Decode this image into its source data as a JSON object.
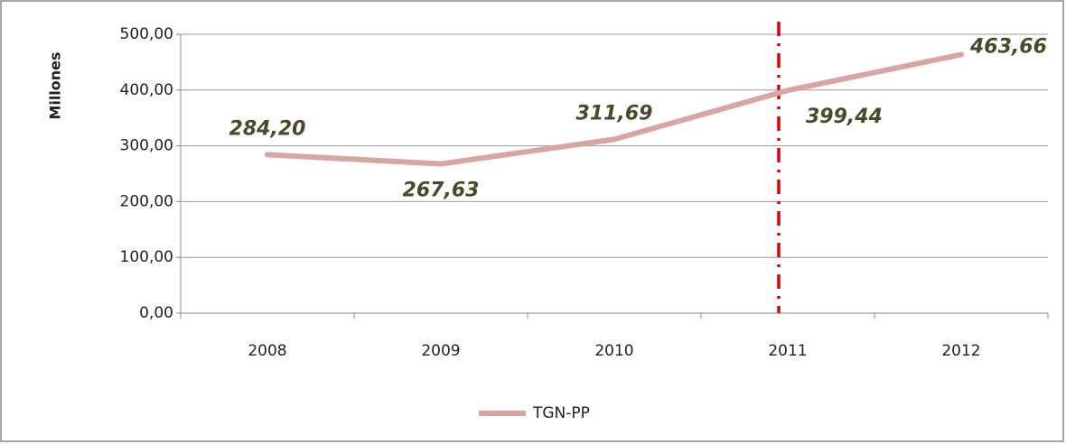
{
  "chart_data": {
    "type": "line",
    "y_label": "Millones",
    "categories": [
      "2008",
      "2009",
      "2010",
      "2011",
      "2012"
    ],
    "series": [
      {
        "name": "TGN-PP",
        "color": "#d8a4a4",
        "values": [
          284.2,
          267.63,
          311.69,
          399.44,
          463.66
        ],
        "value_labels": [
          "284,20",
          "267,63",
          "311,69",
          "399,44",
          "463,66"
        ]
      }
    ],
    "ylim": [
      0,
      500
    ],
    "yticks": [
      {
        "value": 0,
        "label": "0,00"
      },
      {
        "value": 100,
        "label": "100,00"
      },
      {
        "value": 200,
        "label": "200,00"
      },
      {
        "value": 300,
        "label": "300,00"
      },
      {
        "value": 400,
        "label": "400,00"
      },
      {
        "value": 500,
        "label": "500,00"
      }
    ],
    "grid": true,
    "legend": "bottom",
    "highlight": {
      "category": "2011",
      "color": "#e00000"
    }
  }
}
